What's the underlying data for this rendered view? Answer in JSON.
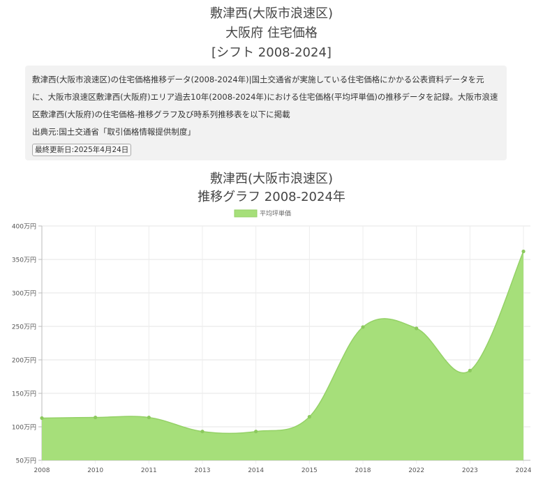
{
  "header": {
    "line1": "敷津西(大阪市浪速区)",
    "line2": "大阪府 住宅価格",
    "line3": "[シフト 2008-2024]"
  },
  "info": {
    "description": "敷津西(大阪市浪速区)の住宅価格推移データ(2008-2024年)|国土交通省が実施している住宅価格にかかる公表資料データを元に、大阪市浪速区敷津西(大阪府)エリア過去10年(2008-2024年)における住宅価格(平均坪単価)の推移データを記録。大阪市浪速区敷津西(大阪府)の住宅価格-推移グラフ及び時系列推移表を以下に掲載",
    "source": "出典元:国土交通省「取引価格情報提供制度」",
    "updated": "最終更新日:2025年4月24日"
  },
  "chart_title": {
    "line1": "敷津西(大阪市浪速区)",
    "line2": "推移グラフ 2008-2024年"
  },
  "chart_data": {
    "type": "area",
    "categories": [
      "2008",
      "2010",
      "2011",
      "2013",
      "2014",
      "2015",
      "2018",
      "2022",
      "2023",
      "2024"
    ],
    "series": [
      {
        "name": "平均坪単価",
        "values": [
          113,
          114,
          114,
          93,
          93,
          115,
          249,
          247,
          184,
          362
        ]
      }
    ],
    "y_ticks": [
      "50万円",
      "100万円",
      "150万円",
      "200万円",
      "250万円",
      "300万円",
      "350万円",
      "400万円"
    ],
    "ylim": [
      50,
      400
    ],
    "grid": true,
    "legend_position": "top",
    "colors": {
      "fill": "#a6df7a",
      "line": "#94d166",
      "point": "#8cc95e"
    }
  }
}
